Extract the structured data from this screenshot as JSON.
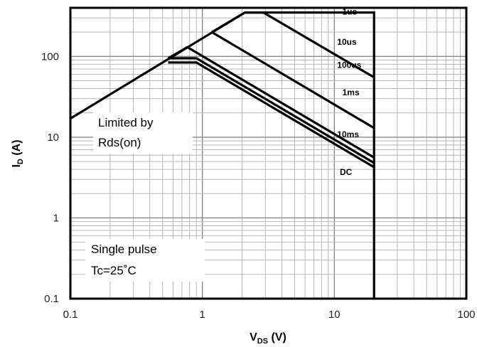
{
  "chart_data": {
    "type": "line",
    "xscale": "log",
    "yscale": "log",
    "xlim": [
      0.1,
      100
    ],
    "ylim": [
      0.1,
      400
    ],
    "grid": true,
    "x_ticks": [
      "0.1",
      "1",
      "10",
      "100"
    ],
    "y_ticks": [
      "0.1",
      "1",
      "10",
      "100"
    ],
    "xlabel": {
      "main": "V",
      "sub": "DS",
      "unit": " (V)"
    },
    "ylabel": {
      "main": "I",
      "sub": "D",
      "unit": " (A)"
    },
    "series": [
      {
        "name": "1us",
        "x": [
          0.1,
          2.1,
          20,
          20
        ],
        "y": [
          17,
          350,
          350,
          0.1
        ]
      },
      {
        "name": "10us",
        "x": [
          1.18,
          2.1,
          2.9,
          20
        ],
        "y": [
          200,
          350,
          350,
          55
        ]
      },
      {
        "name": "100us",
        "x": [
          1.18,
          20
        ],
        "y": [
          200,
          13
        ]
      },
      {
        "name": "1ms",
        "x": [
          0.55,
          0.77,
          20
        ],
        "y": [
          95,
          130,
          5.6
        ]
      },
      {
        "name": "10ms",
        "x": [
          0.55,
          0.9,
          20
        ],
        "y": [
          95,
          95,
          4.8
        ]
      },
      {
        "name": "DC",
        "x": [
          0.55,
          0.9,
          20
        ],
        "y": [
          95,
          95,
          4.8
        ]
      }
    ],
    "curve_labels": [
      {
        "text": "1us",
        "x": 11.5,
        "y": 330
      },
      {
        "text": "10us",
        "x": 10.5,
        "y": 140
      },
      {
        "text": "100us",
        "x": 10.5,
        "y": 72
      },
      {
        "text": "1ms",
        "x": 11.5,
        "y": 33
      },
      {
        "text": "10ms",
        "x": 10.5,
        "y": 10
      },
      {
        "text": "DC",
        "x": 11.0,
        "y": 3.4
      }
    ],
    "annotations": {
      "limited": [
        "Limited by",
        "Rds(on)"
      ],
      "pulse": [
        "Single pulse",
        "Tc=25˚C"
      ]
    }
  }
}
